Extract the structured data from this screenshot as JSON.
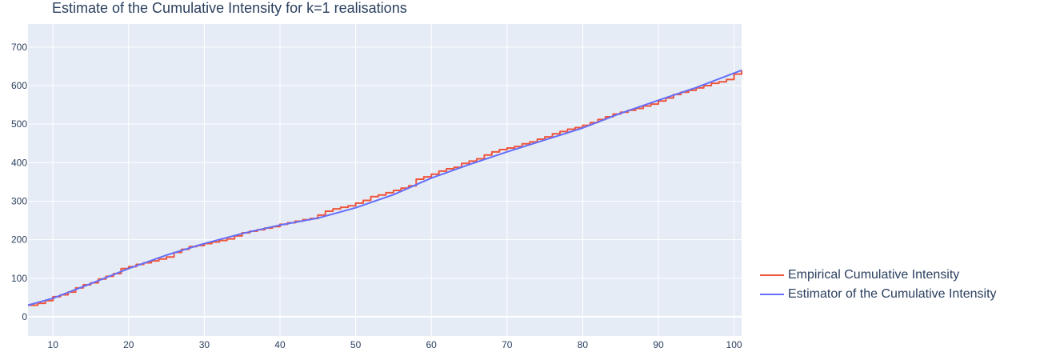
{
  "chart_data": {
    "type": "line",
    "title": "Estimate of the Cumulative Intensity for k=1 realisations",
    "xlabel": "",
    "ylabel": "",
    "xlim": [
      6.7,
      101
    ],
    "ylim": [
      -50,
      760
    ],
    "x_ticks": [
      10,
      20,
      30,
      40,
      50,
      60,
      70,
      80,
      90,
      100
    ],
    "y_ticks": [
      0,
      100,
      200,
      300,
      400,
      500,
      600,
      700
    ],
    "grid": true,
    "legend_position": "right",
    "colors": {
      "plot_bg": "#e5ecf6",
      "grid": "#ffffff",
      "empirical": "#ef553b",
      "estimator": "#636efa"
    },
    "series": [
      {
        "name": "Empirical Cumulative Intensity",
        "style": "step",
        "x": [
          6.7,
          8,
          9,
          10,
          11,
          12,
          13,
          14,
          15,
          16,
          17,
          18,
          19,
          20,
          21,
          22,
          23,
          24,
          25,
          26,
          27,
          28,
          29,
          30,
          31,
          32,
          33,
          34,
          35,
          36,
          37,
          38,
          39,
          40,
          41,
          42,
          43,
          44,
          45,
          46,
          47,
          48,
          49,
          50,
          51,
          52,
          53,
          54,
          55,
          56,
          57,
          58,
          59,
          60,
          61,
          62,
          63,
          64,
          65,
          66,
          67,
          68,
          69,
          70,
          71,
          72,
          73,
          74,
          75,
          76,
          77,
          78,
          79,
          80,
          81,
          82,
          83,
          84,
          85,
          86,
          87,
          88,
          89,
          90,
          91,
          92,
          93,
          94,
          95,
          96,
          97,
          98,
          99,
          100,
          101
        ],
        "values": [
          30,
          35,
          42,
          52,
          57,
          64,
          75,
          83,
          88,
          98,
          105,
          112,
          125,
          130,
          136,
          140,
          145,
          150,
          155,
          167,
          175,
          182,
          185,
          190,
          194,
          198,
          202,
          210,
          218,
          222,
          226,
          230,
          234,
          240,
          244,
          248,
          252,
          255,
          264,
          274,
          280,
          284,
          288,
          295,
          302,
          312,
          316,
          322,
          328,
          334,
          340,
          357,
          363,
          370,
          378,
          384,
          388,
          398,
          404,
          410,
          420,
          428,
          434,
          438,
          442,
          449,
          454,
          461,
          467,
          475,
          481,
          487,
          491,
          497,
          504,
          512,
          519,
          526,
          531,
          536,
          541,
          547,
          552,
          560,
          568,
          577,
          583,
          588,
          594,
          600,
          606,
          610,
          616,
          630,
          640
        ]
      },
      {
        "name": "Estimator of the Cumulative Intensity",
        "style": "line",
        "x": [
          6.7,
          10,
          15,
          20,
          25,
          30,
          35,
          40,
          45,
          50,
          55,
          60,
          65,
          70,
          75,
          80,
          85,
          90,
          95,
          101
        ],
        "values": [
          30,
          48,
          86,
          125,
          160,
          190,
          216,
          238,
          256,
          283,
          317,
          360,
          395,
          428,
          459,
          490,
          528,
          562,
          595,
          640
        ]
      }
    ]
  }
}
